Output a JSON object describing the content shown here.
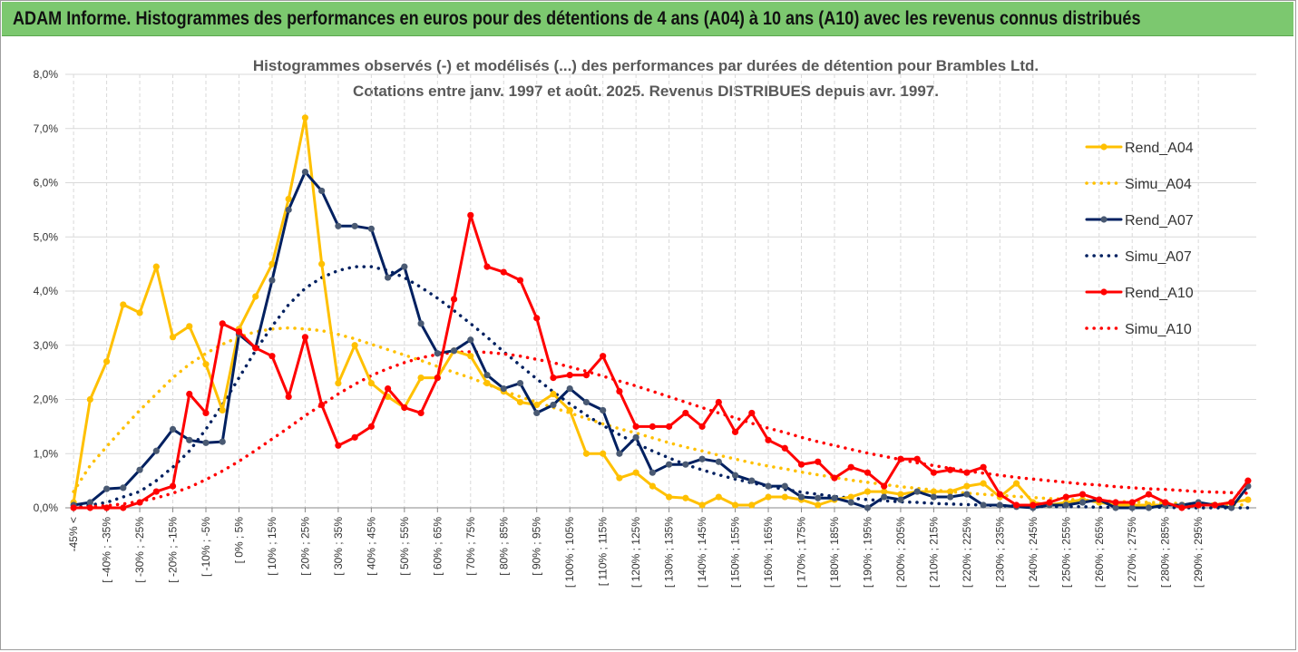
{
  "header": {
    "title": "ADAM Informe. Histogrammes des performances en euros pour des détentions de 4 ans (A04) à 10 ans (A10) avec les revenus connus distribués"
  },
  "chart_data": {
    "type": "line",
    "title": "Histogrammes observés (-) et modélisés (...) des performances par durées de détention pour Brambles Ltd.",
    "subtitle": "Cotations entre janv. 1997 et août. 2025. Revenus DISTRIBUES depuis avr.  1997.",
    "xlabel": "",
    "ylabel": "",
    "ylim": [
      0,
      8
    ],
    "y_ticks": [
      "0,0%",
      "1,0%",
      "2,0%",
      "3,0%",
      "4,0%",
      "5,0%",
      "6,0%",
      "7,0%",
      "8,0%"
    ],
    "x_tick_labels": [
      "-45% <",
      "[ -40% ; -35%",
      "[ -30% ; -25%",
      "[ -20% ; -15%",
      "[ -10% ; -5%",
      "[ 0% ; 5%",
      "[ 10% ; 15%",
      "[ 20% ; 25%",
      "[ 30% ; 35%",
      "[ 40% ; 45%",
      "[ 50% ; 55%",
      "[ 60% ; 65%",
      "[ 70% ; 75%",
      "[ 80% ; 85%",
      "[ 90% ; 95%",
      "[ 100% ; 105%",
      "[ 110% ; 115%",
      "[ 120% ; 125%",
      "[ 130% ; 135%",
      "[ 140% ; 145%",
      "[ 150% ; 155%",
      "[ 160% ; 165%",
      "[ 170% ; 175%",
      "[ 180% ; 185%",
      "[ 190% ; 195%",
      "[ 200% ; 205%",
      "[ 210% ; 215%",
      "[ 220% ; 225%",
      "[ 230% ; 235%",
      "[ 240% ; 245%",
      "[ 250% ; 255%",
      "[ 260% ; 265%",
      "[ 270% ; 275%",
      "[ 280% ; 285%",
      "[ 290% ; 295%"
    ],
    "grid": true,
    "legend_position": "right",
    "series": [
      {
        "name": "Rend_A04",
        "style": "solid",
        "color": "#ffc000",
        "markers": true,
        "values": [
          0.1,
          2.0,
          2.7,
          3.75,
          3.6,
          4.45,
          3.15,
          3.35,
          2.65,
          1.8,
          3.3,
          3.9,
          4.5,
          5.7,
          7.2,
          4.5,
          2.3,
          3.0,
          2.3,
          2.05,
          1.85,
          2.4,
          2.4,
          2.9,
          2.8,
          2.3,
          2.15,
          1.95,
          1.9,
          2.1,
          1.8,
          1.0,
          1.0,
          0.55,
          0.65,
          0.4,
          0.2,
          0.18,
          0.05,
          0.2,
          0.05,
          0.05,
          0.2,
          0.2,
          0.15,
          0.05,
          0.15,
          0.2,
          0.3,
          0.3,
          0.25,
          0.3,
          0.3,
          0.3,
          0.4,
          0.45,
          0.2,
          0.45,
          0.1,
          0.05,
          0.1,
          0.15,
          0.1,
          0.05,
          0.05,
          0.05,
          0.05,
          0.05,
          0.05,
          0.05,
          0.1,
          0.15
        ]
      },
      {
        "name": "Simu_A04",
        "style": "dotted",
        "color": "#ffc000",
        "markers": false,
        "values": [
          0.3,
          0.78,
          1.13,
          1.47,
          1.8,
          2.1,
          2.4,
          2.65,
          2.85,
          3.02,
          3.15,
          3.25,
          3.3,
          3.32,
          3.3,
          3.27,
          3.2,
          3.12,
          3.02,
          2.92,
          2.82,
          2.72,
          2.61,
          2.5,
          2.4,
          2.28,
          2.16,
          2.05,
          1.95,
          1.85,
          1.75,
          1.65,
          1.55,
          1.46,
          1.38,
          1.29,
          1.2,
          1.12,
          1.05,
          0.97,
          0.9,
          0.83,
          0.77,
          0.72,
          0.66,
          0.61,
          0.56,
          0.51,
          0.47,
          0.43,
          0.39,
          0.36,
          0.33,
          0.3,
          0.27,
          0.25,
          0.23,
          0.21,
          0.19,
          0.17,
          0.16,
          0.14,
          0.13,
          0.12,
          0.11,
          0.1,
          0.09,
          0.08,
          0.07,
          0.07,
          0.06,
          0.05
        ]
      },
      {
        "name": "Rend_A07",
        "style": "solid",
        "color": "#002060",
        "markers": true,
        "values": [
          0.05,
          0.1,
          0.35,
          0.37,
          0.7,
          1.05,
          1.45,
          1.25,
          1.2,
          1.22,
          3.2,
          2.95,
          4.2,
          5.5,
          6.2,
          5.85,
          5.2,
          5.2,
          5.15,
          4.25,
          4.45,
          3.4,
          2.85,
          2.9,
          3.1,
          2.45,
          2.2,
          2.3,
          1.75,
          1.9,
          2.2,
          1.95,
          1.8,
          1.0,
          1.3,
          0.65,
          0.8,
          0.8,
          0.9,
          0.85,
          0.6,
          0.5,
          0.4,
          0.4,
          0.2,
          0.18,
          0.18,
          0.1,
          0.0,
          0.2,
          0.15,
          0.3,
          0.2,
          0.2,
          0.25,
          0.05,
          0.05,
          0.02,
          0.0,
          0.05,
          0.05,
          0.1,
          0.15,
          0.0,
          0.0,
          0.0,
          0.05,
          0.05,
          0.1,
          0.05,
          0.0,
          0.4
        ]
      },
      {
        "name": "Simu_A07",
        "style": "dotted",
        "color": "#002060",
        "markers": false,
        "values": [
          0.0,
          0.05,
          0.1,
          0.2,
          0.3,
          0.5,
          0.75,
          1.05,
          1.45,
          1.9,
          2.4,
          2.9,
          3.35,
          3.75,
          4.05,
          4.25,
          4.38,
          4.45,
          4.45,
          4.38,
          4.25,
          4.07,
          3.87,
          3.64,
          3.4,
          3.15,
          2.88,
          2.63,
          2.38,
          2.14,
          1.92,
          1.71,
          1.52,
          1.35,
          1.19,
          1.05,
          0.92,
          0.8,
          0.7,
          0.61,
          0.53,
          0.46,
          0.4,
          0.34,
          0.29,
          0.25,
          0.21,
          0.18,
          0.15,
          0.13,
          0.11,
          0.1,
          0.08,
          0.07,
          0.06,
          0.05,
          0.04,
          0.03,
          0.03,
          0.02,
          0.02,
          0.02,
          0.01,
          0.01,
          0.01,
          0.01,
          0.01,
          0.0,
          0.0,
          0.0,
          0.0,
          0.0
        ]
      },
      {
        "name": "Rend_A10",
        "style": "solid",
        "color": "#ff0000",
        "markers": true,
        "values": [
          0.0,
          0.0,
          0.0,
          0.0,
          0.1,
          0.3,
          0.4,
          2.1,
          1.75,
          3.4,
          3.25,
          2.95,
          2.8,
          2.05,
          3.15,
          1.9,
          1.15,
          1.3,
          1.5,
          2.2,
          1.85,
          1.75,
          2.4,
          3.85,
          5.4,
          4.45,
          4.35,
          4.2,
          3.5,
          2.4,
          2.45,
          2.45,
          2.8,
          2.15,
          1.5,
          1.5,
          1.5,
          1.75,
          1.5,
          1.95,
          1.4,
          1.75,
          1.25,
          1.1,
          0.8,
          0.85,
          0.55,
          0.75,
          0.65,
          0.4,
          0.9,
          0.9,
          0.65,
          0.7,
          0.65,
          0.75,
          0.25,
          0.05,
          0.05,
          0.1,
          0.2,
          0.25,
          0.15,
          0.1,
          0.1,
          0.25,
          0.1,
          0.0,
          0.05,
          0.05,
          0.1,
          0.5
        ]
      },
      {
        "name": "Simu_A10",
        "style": "dotted",
        "color": "#ff0000",
        "markers": false,
        "values": [
          0.0,
          0.02,
          0.04,
          0.07,
          0.12,
          0.18,
          0.27,
          0.38,
          0.52,
          0.68,
          0.86,
          1.06,
          1.27,
          1.48,
          1.7,
          1.9,
          2.1,
          2.28,
          2.44,
          2.57,
          2.68,
          2.77,
          2.83,
          2.87,
          2.88,
          2.87,
          2.84,
          2.8,
          2.74,
          2.68,
          2.6,
          2.52,
          2.43,
          2.34,
          2.25,
          2.15,
          2.05,
          1.95,
          1.85,
          1.75,
          1.66,
          1.56,
          1.47,
          1.39,
          1.3,
          1.22,
          1.15,
          1.08,
          1.01,
          0.95,
          0.89,
          0.83,
          0.78,
          0.73,
          0.68,
          0.64,
          0.6,
          0.56,
          0.53,
          0.5,
          0.47,
          0.44,
          0.42,
          0.39,
          0.37,
          0.35,
          0.34,
          0.32,
          0.3,
          0.29,
          0.28,
          0.27
        ]
      }
    ]
  }
}
